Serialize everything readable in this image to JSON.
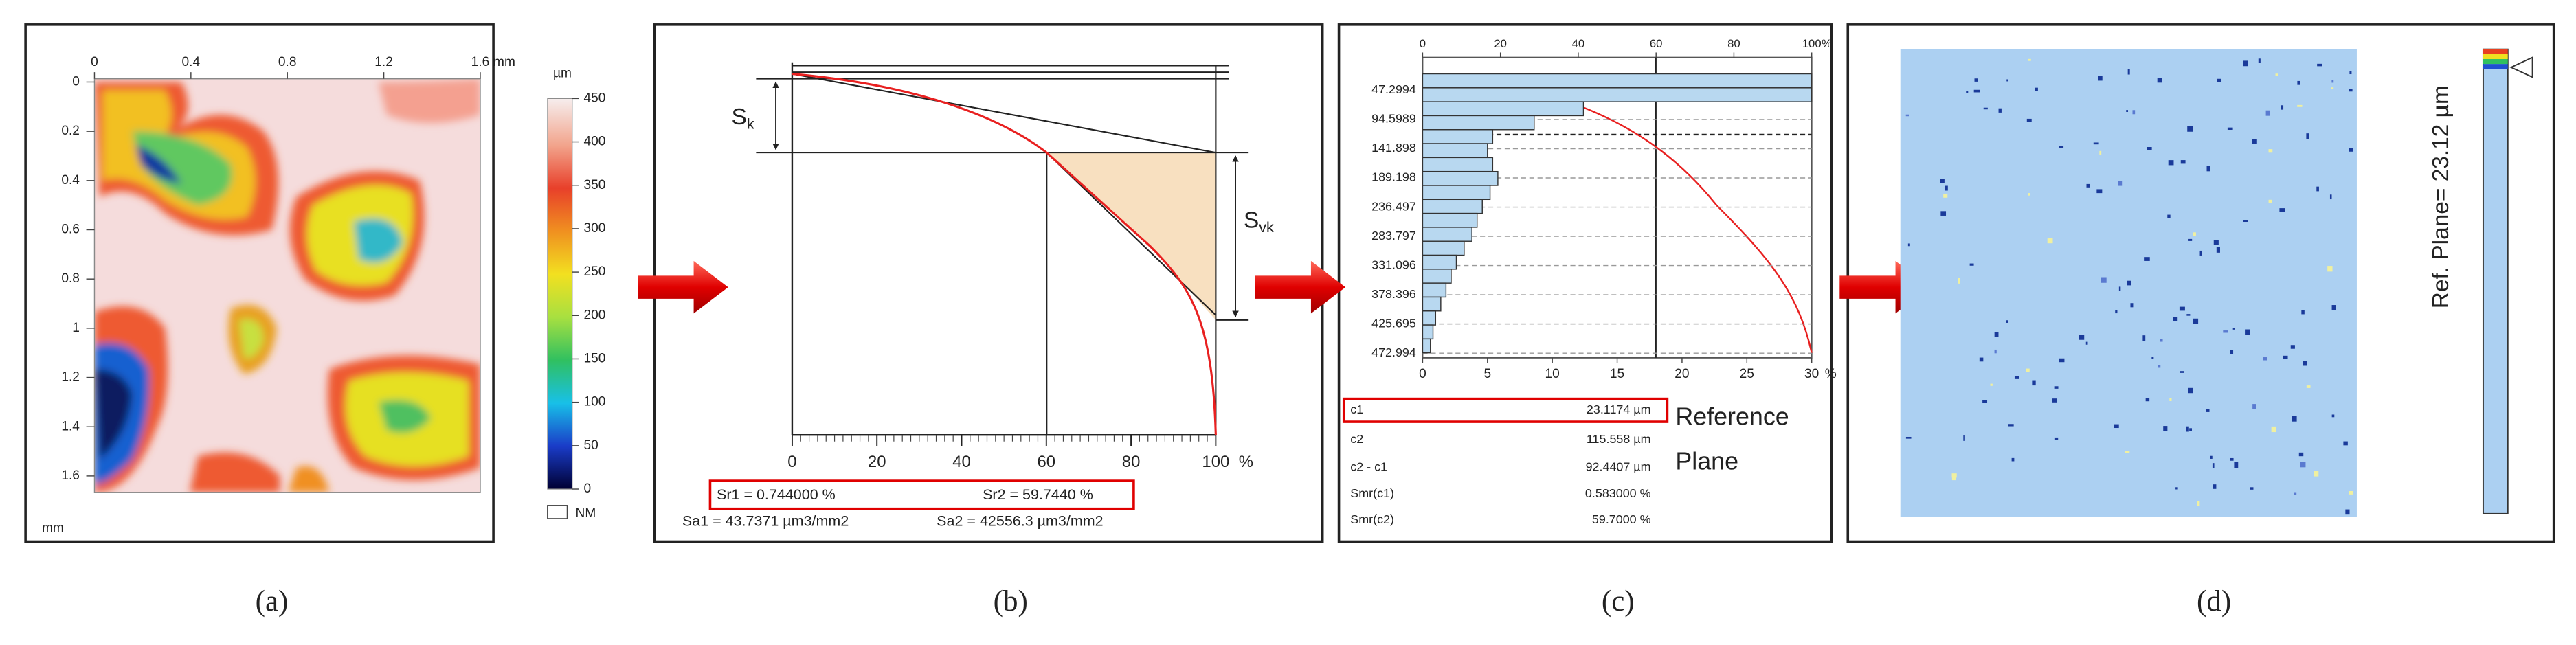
{
  "panel_a": {
    "caption": "(a)",
    "x_ticks": [
      0,
      0.4,
      0.8,
      1.2,
      1.6
    ],
    "x_unit": "mm",
    "y_ticks": [
      0,
      0.2,
      0.4,
      0.6,
      0.8,
      1,
      1.2,
      1.4,
      1.6
    ],
    "y_unit": "mm",
    "colorbar_unit": "µm",
    "colorbar_ticks": [
      0,
      50,
      100,
      150,
      200,
      250,
      300,
      350,
      400,
      450
    ],
    "legend": "NM"
  },
  "panel_b": {
    "caption": "(b)",
    "x_ticks": [
      0,
      20,
      40,
      60,
      80,
      100
    ],
    "x_unit": "%",
    "sk": {
      "symbol": "S",
      "subscript": "k"
    },
    "svk": {
      "symbol": "S",
      "subscript": "vk"
    },
    "sr1": "Sr1 = 0.744000 %",
    "sr2": "Sr2 = 59.7440 %",
    "sa1": "Sa1 = 43.7371 µm3/mm2",
    "sa2": "Sa2 = 42556.3 µm3/mm2"
  },
  "panel_c": {
    "caption": "(c)",
    "top_ticks": [
      0,
      20,
      40,
      60,
      80,
      100
    ],
    "top_unit": "%",
    "depth_labels": [
      47.2994,
      94.5989,
      141.898,
      189.198,
      236.497,
      283.797,
      331.096,
      378.396,
      425.695,
      472.994
    ],
    "bottom_ticks": [
      0,
      5,
      10,
      15,
      20,
      25,
      30
    ],
    "bottom_unit": "%",
    "histogram": [
      30,
      30,
      12.4,
      8.6,
      5.4,
      5,
      5.4,
      5.8,
      5.2,
      4.6,
      4.2,
      3.8,
      3.2,
      2.6,
      2.2,
      1.8,
      1.4,
      1,
      0.8,
      0.6
    ],
    "table": [
      [
        "c1",
        "23.1174 µm"
      ],
      [
        "c2",
        "115.558 µm"
      ],
      [
        "c2 - c1",
        "92.4407 µm"
      ],
      [
        "Smr(c1)",
        "0.583000 %"
      ],
      [
        "Smr(c2)",
        "59.7000 %"
      ]
    ],
    "reference_label": [
      "Reference",
      "Plane"
    ]
  },
  "panel_d": {
    "caption": "(d)",
    "colorbar_label": "Ref. Plane= 23.12 µm"
  }
}
